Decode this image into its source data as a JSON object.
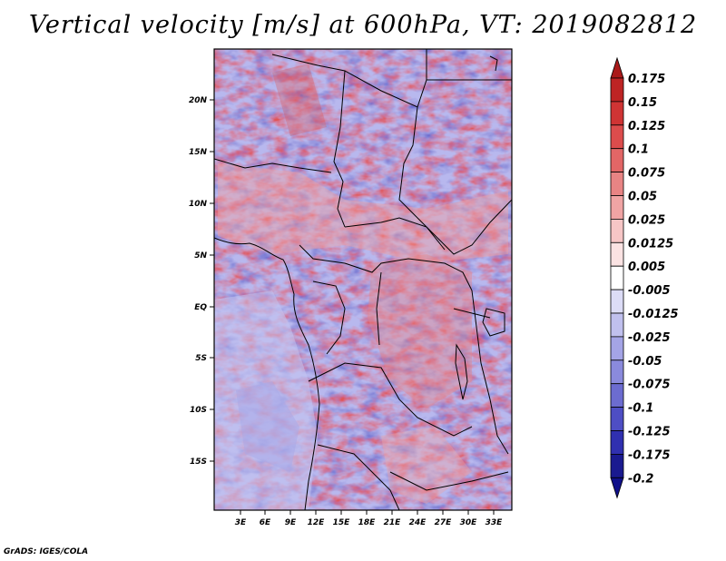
{
  "title": "Vertical velocity [m/s] at 600hPa, VT: 2019082812",
  "footer": "GrADS: IGES/COLA",
  "map": {
    "variable": "Vertical velocity",
    "units": "m/s",
    "level": "600hPa",
    "valid_time": "2019082812",
    "lat_ticks": [
      "20N",
      "15N",
      "10N",
      "5N",
      "EQ",
      "5S",
      "10S",
      "15S"
    ],
    "lon_ticks": [
      "3E",
      "6E",
      "9E",
      "12E",
      "15E",
      "18E",
      "21E",
      "24E",
      "27E",
      "30E",
      "33E"
    ]
  },
  "colorbar": {
    "labels": [
      "0.175",
      "0.15",
      "0.125",
      "0.1",
      "0.075",
      "0.05",
      "0.025",
      "0.0125",
      "0.005",
      "-0.005",
      "-0.0125",
      "-0.025",
      "-0.05",
      "-0.075",
      "-0.1",
      "-0.125",
      "-0.175",
      "-0.2"
    ],
    "colors": [
      "#aa1a1a",
      "#be2424",
      "#cf3434",
      "#dc4c4c",
      "#e26666",
      "#e88484",
      "#f0a4a4",
      "#f6c6c6",
      "#fbe3e3",
      "#ffffff",
      "#dcdcf6",
      "#c0c0ee",
      "#a4a4e6",
      "#8a8adc",
      "#6c6cd0",
      "#4e4ec4",
      "#3030b0",
      "#1a1a90",
      "#10108a"
    ]
  }
}
